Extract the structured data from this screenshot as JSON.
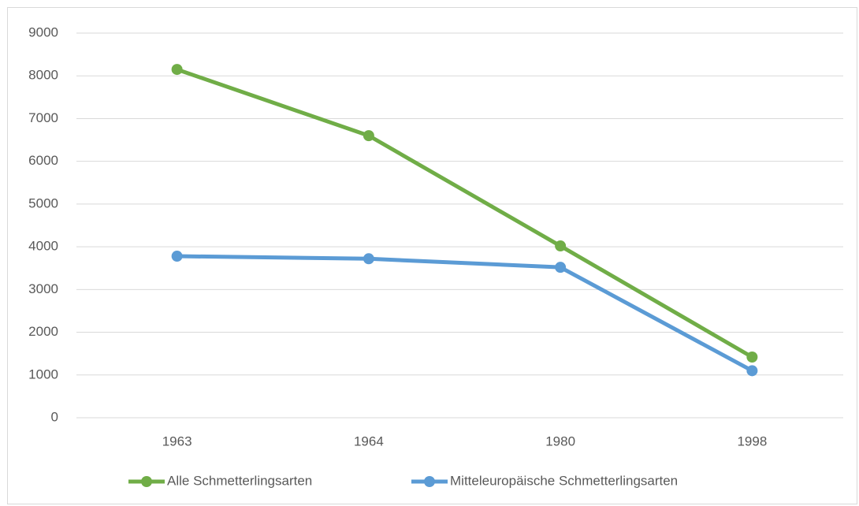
{
  "chart_data": {
    "type": "line",
    "categories": [
      "1963",
      "1964",
      "1980",
      "1998"
    ],
    "series": [
      {
        "name": "Alle Schmetterlingsarten",
        "color": "#70ad47",
        "values": [
          8150,
          6600,
          4020,
          1420
        ]
      },
      {
        "name": "Mitteleuropäische Schmetterlingsarten",
        "color": "#5b9bd5",
        "values": [
          3780,
          3720,
          3520,
          1100
        ]
      }
    ],
    "ylim": [
      0,
      9000
    ],
    "yticks": [
      0,
      1000,
      2000,
      3000,
      4000,
      5000,
      6000,
      7000,
      8000,
      9000
    ],
    "grid": true,
    "legend": "bottom"
  }
}
